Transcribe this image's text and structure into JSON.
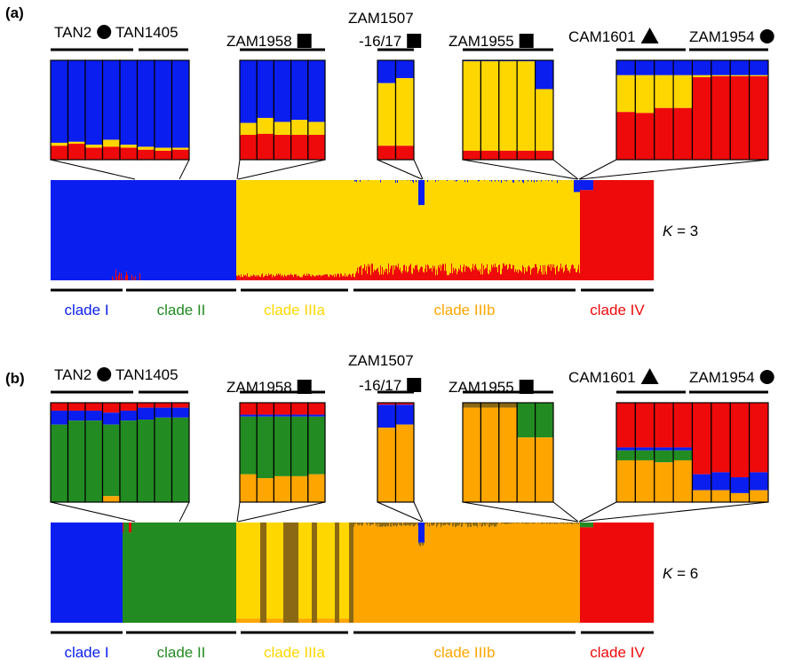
{
  "colors": {
    "blue": "#0a1ef0",
    "yellow": "#ffd700",
    "red": "#ee0a0a",
    "green": "#228b22",
    "orange": "#ffa500",
    "brown": "#8b6914",
    "black": "#000000"
  },
  "icons": {
    "circle": "filled-circle-icon",
    "square": "filled-square-icon",
    "triangle": "filled-triangle-icon"
  },
  "chart_data": [
    {
      "type": "stacked-bar",
      "panel": "(a)",
      "k_prefix": "K",
      "k_suffix": " = 3",
      "k_value": 3,
      "cluster_colors": [
        "blue",
        "yellow",
        "red"
      ],
      "clades": [
        {
          "label": "clade I",
          "color": "blue"
        },
        {
          "label": "clade II",
          "color": "green"
        },
        {
          "label": "clade IIIa",
          "color": "yellow"
        },
        {
          "label": "clade IIIb",
          "color": "orange"
        },
        {
          "label": "clade IV",
          "color": "red"
        }
      ],
      "insets": [
        {
          "group": "TAN2 ● / TAN1405",
          "samples": [
            {
              "blue": 0.83,
              "yellow": 0.03,
              "red": 0.14
            },
            {
              "blue": 0.82,
              "yellow": 0.02,
              "red": 0.16
            },
            {
              "blue": 0.85,
              "yellow": 0.03,
              "red": 0.12
            },
            {
              "blue": 0.8,
              "yellow": 0.07,
              "red": 0.13
            },
            {
              "blue": 0.85,
              "yellow": 0.03,
              "red": 0.12
            },
            {
              "blue": 0.87,
              "yellow": 0.03,
              "red": 0.1
            },
            {
              "blue": 0.88,
              "yellow": 0.03,
              "red": 0.09
            },
            {
              "blue": 0.88,
              "yellow": 0.02,
              "red": 0.1
            }
          ]
        },
        {
          "group": "ZAM1958",
          "samples": [
            {
              "blue": 0.63,
              "yellow": 0.12,
              "red": 0.25
            },
            {
              "blue": 0.58,
              "yellow": 0.16,
              "red": 0.26
            },
            {
              "blue": 0.62,
              "yellow": 0.13,
              "red": 0.25
            },
            {
              "blue": 0.6,
              "yellow": 0.15,
              "red": 0.25
            },
            {
              "blue": 0.62,
              "yellow": 0.13,
              "red": 0.25
            }
          ]
        },
        {
          "group": "ZAM1507-16/17",
          "samples": [
            {
              "blue": 0.23,
              "yellow": 0.63,
              "red": 0.14
            },
            {
              "blue": 0.18,
              "yellow": 0.68,
              "red": 0.14
            }
          ]
        },
        {
          "group": "ZAM1955",
          "samples": [
            {
              "blue": 0.01,
              "yellow": 0.9,
              "red": 0.09
            },
            {
              "blue": 0.01,
              "yellow": 0.9,
              "red": 0.09
            },
            {
              "blue": 0.01,
              "yellow": 0.9,
              "red": 0.09
            },
            {
              "blue": 0.01,
              "yellow": 0.9,
              "red": 0.09
            },
            {
              "blue": 0.29,
              "yellow": 0.62,
              "red": 0.09
            }
          ]
        },
        {
          "group": "CAM1601 ▲ / ZAM1954 ●",
          "samples": [
            {
              "blue": 0.15,
              "yellow": 0.37,
              "red": 0.48
            },
            {
              "blue": 0.15,
              "yellow": 0.38,
              "red": 0.47
            },
            {
              "blue": 0.15,
              "yellow": 0.33,
              "red": 0.52
            },
            {
              "blue": 0.15,
              "yellow": 0.33,
              "red": 0.52
            },
            {
              "blue": 0.15,
              "yellow": 0.02,
              "red": 0.83
            },
            {
              "blue": 0.15,
              "yellow": 0.01,
              "red": 0.84
            },
            {
              "blue": 0.15,
              "yellow": 0.01,
              "red": 0.84
            },
            {
              "blue": 0.15,
              "yellow": 0.01,
              "red": 0.84
            }
          ]
        }
      ]
    },
    {
      "type": "stacked-bar",
      "panel": "(b)",
      "k_prefix": "K",
      "k_suffix": " = 6",
      "k_value": 6,
      "cluster_colors": [
        "blue",
        "green",
        "yellow",
        "brown",
        "orange",
        "red"
      ],
      "clades": [
        {
          "label": "clade I",
          "color": "blue"
        },
        {
          "label": "clade II",
          "color": "green"
        },
        {
          "label": "clade IIIa",
          "color": "yellow"
        },
        {
          "label": "clade IIIb",
          "color": "orange"
        },
        {
          "label": "clade IV",
          "color": "red"
        }
      ],
      "insets": [
        {
          "group": "TAN2 ● / TAN1405",
          "samples": [
            {
              "red": 0.08,
              "blue": 0.14,
              "green": 0.78
            },
            {
              "red": 0.08,
              "blue": 0.1,
              "green": 0.82
            },
            {
              "red": 0.08,
              "blue": 0.1,
              "green": 0.82
            },
            {
              "red": 0.1,
              "blue": 0.12,
              "green": 0.72,
              "orange": 0.06
            },
            {
              "red": 0.08,
              "blue": 0.1,
              "green": 0.82
            },
            {
              "red": 0.05,
              "blue": 0.12,
              "green": 0.83
            },
            {
              "red": 0.05,
              "blue": 0.1,
              "green": 0.85
            },
            {
              "red": 0.05,
              "blue": 0.1,
              "green": 0.85
            }
          ]
        },
        {
          "group": "ZAM1958",
          "samples": [
            {
              "red": 0.12,
              "blue": 0.02,
              "green": 0.58,
              "orange": 0.28
            },
            {
              "red": 0.12,
              "blue": 0.02,
              "green": 0.62,
              "orange": 0.24
            },
            {
              "red": 0.12,
              "blue": 0.02,
              "green": 0.6,
              "orange": 0.26
            },
            {
              "red": 0.12,
              "blue": 0.02,
              "green": 0.6,
              "orange": 0.26
            },
            {
              "red": 0.12,
              "blue": 0.02,
              "green": 0.58,
              "orange": 0.28
            }
          ]
        },
        {
          "group": "ZAM1507-16/17",
          "samples": [
            {
              "red": 0.02,
              "blue": 0.23,
              "orange": 0.75
            },
            {
              "red": 0.02,
              "blue": 0.2,
              "orange": 0.78
            }
          ]
        },
        {
          "group": "ZAM1955",
          "samples": [
            {
              "brown": 0.05,
              "orange": 0.95
            },
            {
              "brown": 0.05,
              "orange": 0.95
            },
            {
              "brown": 0.05,
              "orange": 0.95
            },
            {
              "green": 0.35,
              "orange": 0.65
            },
            {
              "green": 0.35,
              "orange": 0.65
            }
          ]
        },
        {
          "group": "CAM1601 ▲ / ZAM1954 ●",
          "samples": [
            {
              "red": 0.45,
              "blue": 0.03,
              "green": 0.1,
              "orange": 0.42
            },
            {
              "red": 0.45,
              "blue": 0.03,
              "green": 0.1,
              "orange": 0.42
            },
            {
              "red": 0.45,
              "blue": 0.03,
              "green": 0.12,
              "orange": 0.4
            },
            {
              "red": 0.45,
              "blue": 0.03,
              "green": 0.1,
              "orange": 0.42
            },
            {
              "red": 0.72,
              "blue": 0.16,
              "orange": 0.12
            },
            {
              "red": 0.7,
              "blue": 0.18,
              "orange": 0.12
            },
            {
              "red": 0.75,
              "blue": 0.16,
              "orange": 0.09
            },
            {
              "red": 0.7,
              "blue": 0.18,
              "orange": 0.12
            }
          ]
        }
      ]
    }
  ],
  "population_labels": [
    {
      "text": "TAN2",
      "icon": "circle"
    },
    {
      "text": "TAN1405",
      "icon": ""
    },
    {
      "text": "ZAM1958",
      "icon": "square"
    },
    {
      "text": "ZAM1507",
      "icon": ""
    },
    {
      "text": "-16/17",
      "icon": "square"
    },
    {
      "text": "ZAM1955",
      "icon": "square"
    },
    {
      "text": "CAM1601",
      "icon": "triangle"
    },
    {
      "text": "ZAM1954",
      "icon": "circle"
    }
  ]
}
